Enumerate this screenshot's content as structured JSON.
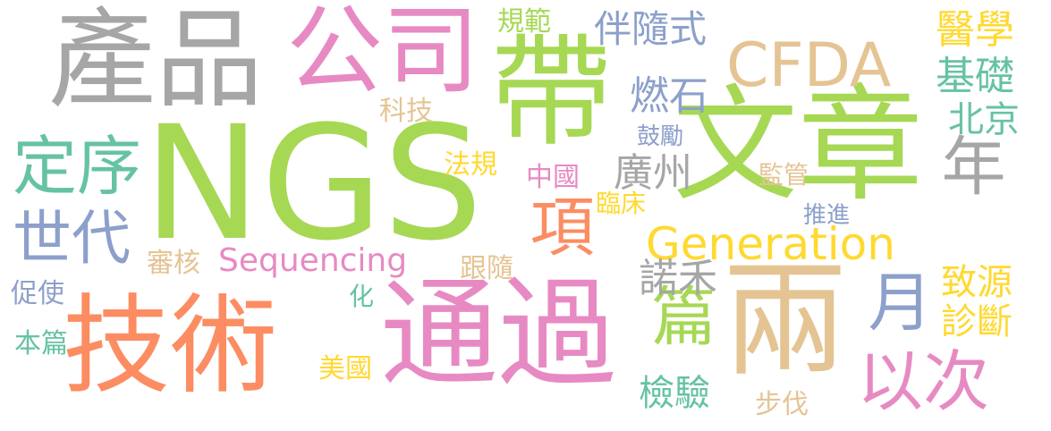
{
  "colors": {
    "gray": "#a6a6a6",
    "pink": "#e78ac3",
    "green": "#a6d854",
    "tan": "#e5c494",
    "teal": "#66c2a5",
    "blue": "#8da0cb",
    "orange": "#fc8d62",
    "yellow": "#ffd92f"
  },
  "words": {
    "ngs": "NGS",
    "wenzhang": "文章",
    "chanpin": "產品",
    "gongsi": "公司",
    "dai": "帶",
    "tongguo": "通過",
    "jishu": "技術",
    "liang": "兩",
    "cfda": "CFDA",
    "generation": "Generation",
    "sequencing": "Sequencing",
    "dingxu": "定序",
    "shidai": "世代",
    "xiang": "項",
    "pian": "篇",
    "yici": "以次",
    "yue": "月",
    "nian": "年",
    "yixue": "醫學",
    "jichu": "基礎",
    "beijing": "北京",
    "guangzhou": "廣州",
    "ranshi": "燃石",
    "bansuishi": "伴隨式",
    "guifan": "規範",
    "keji": "科技",
    "fagui": "法規",
    "zhongguo": "中國",
    "gulì": "鼓勵",
    "jianguan": "監管",
    "linchuang": "臨床",
    "tuijin": "推進",
    "shenhe": "審核",
    "gensui": "跟隨",
    "nuohe": "諾禾",
    "zhiyuan": "致源",
    "zhenduan": "診斷",
    "cushi": "促使",
    "hua": "化",
    "benpian": "本篇",
    "meiguo": "美國",
    "jianyan": "檢驗",
    "bufa": "步伐"
  }
}
